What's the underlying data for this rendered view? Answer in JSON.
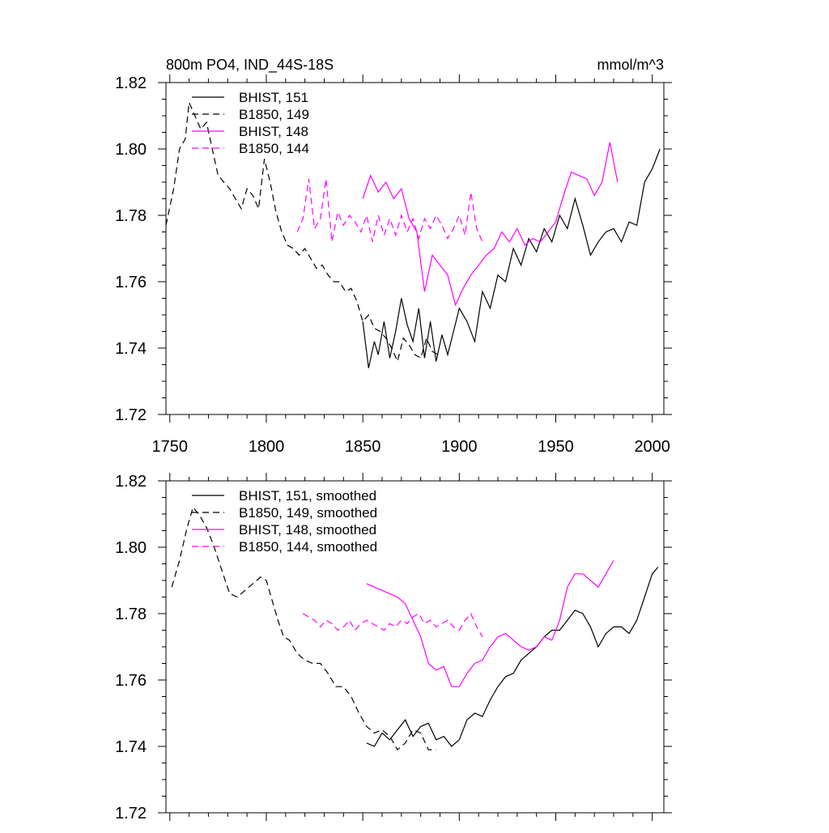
{
  "colors": {
    "black": "#000000",
    "magenta": "#ff00ff"
  },
  "chart_data": [
    {
      "type": "line",
      "title": "800m PO4, IND_44S-18S",
      "units": "mmol/m^3",
      "xlim": [
        1748,
        2006
      ],
      "ylim": [
        1.72,
        1.82
      ],
      "xticks": [
        "1750",
        "1800",
        "1850",
        "1900",
        "1950",
        "2000"
      ],
      "yticks": [
        "1.72",
        "1.74",
        "1.76",
        "1.78",
        "1.80",
        "1.82"
      ],
      "legend_position": "top-left",
      "series": [
        {
          "name": "BHIST, 151",
          "color": "#000000",
          "dash": "solid",
          "x": [
            1850,
            1853,
            1856,
            1858,
            1861,
            1864,
            1867,
            1870,
            1873,
            1876,
            1879,
            1882,
            1885,
            1888,
            1891,
            1894,
            1897,
            1900,
            1904,
            1908,
            1912,
            1916,
            1920,
            1924,
            1928,
            1932,
            1936,
            1940,
            1944,
            1948,
            1952,
            1956,
            1960,
            1964,
            1968,
            1972,
            1976,
            1980,
            1984,
            1988,
            1992,
            1996,
            2000,
            2004
          ],
          "y": [
            1.748,
            1.734,
            1.742,
            1.738,
            1.748,
            1.737,
            1.745,
            1.755,
            1.747,
            1.742,
            1.752,
            1.737,
            1.748,
            1.736,
            1.744,
            1.738,
            1.745,
            1.752,
            1.748,
            1.742,
            1.757,
            1.752,
            1.762,
            1.76,
            1.77,
            1.765,
            1.773,
            1.769,
            1.776,
            1.772,
            1.78,
            1.776,
            1.785,
            1.777,
            1.768,
            1.772,
            1.775,
            1.776,
            1.772,
            1.778,
            1.777,
            1.79,
            1.794,
            1.8
          ]
        },
        {
          "name": "B1850, 149",
          "color": "#000000",
          "dash": "dash",
          "x": [
            1748,
            1752,
            1755,
            1758,
            1760,
            1763,
            1766,
            1769,
            1772,
            1775,
            1778,
            1781,
            1784,
            1787,
            1790,
            1793,
            1796,
            1799,
            1802,
            1805,
            1808,
            1811,
            1814,
            1817,
            1820,
            1823,
            1826,
            1829,
            1832,
            1835,
            1838,
            1841,
            1844,
            1847,
            1850,
            1853,
            1856,
            1859,
            1862,
            1865,
            1868,
            1871,
            1874,
            1877,
            1880,
            1883,
            1886,
            1889
          ],
          "y": [
            1.777,
            1.788,
            1.8,
            1.803,
            1.814,
            1.81,
            1.806,
            1.808,
            1.8,
            1.792,
            1.79,
            1.788,
            1.785,
            1.782,
            1.788,
            1.786,
            1.782,
            1.797,
            1.79,
            1.781,
            1.775,
            1.771,
            1.77,
            1.768,
            1.77,
            1.767,
            1.764,
            1.765,
            1.762,
            1.76,
            1.76,
            1.757,
            1.758,
            1.754,
            1.748,
            1.75,
            1.746,
            1.745,
            1.743,
            1.74,
            1.736,
            1.743,
            1.741,
            1.738,
            1.737,
            1.743,
            1.739,
            1.738
          ]
        },
        {
          "name": "BHIST, 148",
          "color": "#ff00ff",
          "dash": "solid",
          "x": [
            1850,
            1854,
            1858,
            1862,
            1866,
            1870,
            1874,
            1878,
            1882,
            1886,
            1890,
            1894,
            1898,
            1902,
            1906,
            1910,
            1914,
            1918,
            1922,
            1926,
            1930,
            1934,
            1938,
            1942,
            1946,
            1950,
            1954,
            1958,
            1962,
            1966,
            1970,
            1974,
            1978,
            1982
          ],
          "y": [
            1.785,
            1.792,
            1.787,
            1.79,
            1.785,
            1.788,
            1.779,
            1.775,
            1.757,
            1.768,
            1.765,
            1.762,
            1.753,
            1.758,
            1.762,
            1.765,
            1.768,
            1.77,
            1.775,
            1.772,
            1.776,
            1.771,
            1.773,
            1.772,
            1.775,
            1.778,
            1.786,
            1.793,
            1.792,
            1.791,
            1.786,
            1.79,
            1.802,
            1.79
          ]
        },
        {
          "name": "B1850, 144",
          "color": "#ff00ff",
          "dash": "dash",
          "x": [
            1816,
            1819,
            1822,
            1825,
            1828,
            1831,
            1834,
            1837,
            1840,
            1843,
            1846,
            1849,
            1852,
            1855,
            1858,
            1861,
            1864,
            1867,
            1870,
            1873,
            1876,
            1879,
            1882,
            1885,
            1888,
            1891,
            1894,
            1897,
            1900,
            1903,
            1906,
            1909,
            1912
          ],
          "y": [
            1.775,
            1.779,
            1.791,
            1.776,
            1.779,
            1.791,
            1.772,
            1.781,
            1.777,
            1.78,
            1.778,
            1.775,
            1.78,
            1.772,
            1.78,
            1.774,
            1.779,
            1.774,
            1.78,
            1.775,
            1.779,
            1.773,
            1.779,
            1.776,
            1.78,
            1.777,
            1.773,
            1.776,
            1.78,
            1.774,
            1.787,
            1.776,
            1.772
          ]
        }
      ]
    },
    {
      "type": "line",
      "xlim": [
        1748,
        2006
      ],
      "ylim": [
        1.72,
        1.82
      ],
      "yticks": [
        "1.72",
        "1.74",
        "1.76",
        "1.78",
        "1.80",
        "1.82"
      ],
      "legend_position": "top-left",
      "series": [
        {
          "name": "BHIST, 151, smoothed",
          "color": "#000000",
          "dash": "solid",
          "x": [
            1852,
            1856,
            1860,
            1864,
            1868,
            1872,
            1876,
            1880,
            1884,
            1888,
            1892,
            1896,
            1900,
            1904,
            1908,
            1912,
            1916,
            1920,
            1924,
            1928,
            1932,
            1936,
            1940,
            1944,
            1948,
            1952,
            1956,
            1960,
            1964,
            1968,
            1972,
            1976,
            1980,
            1984,
            1988,
            1992,
            1996,
            2000,
            2003
          ],
          "y": [
            1.741,
            1.74,
            1.744,
            1.742,
            1.745,
            1.748,
            1.743,
            1.746,
            1.747,
            1.742,
            1.743,
            1.74,
            1.742,
            1.748,
            1.75,
            1.749,
            1.754,
            1.758,
            1.761,
            1.762,
            1.766,
            1.768,
            1.77,
            1.773,
            1.775,
            1.775,
            1.778,
            1.781,
            1.78,
            1.776,
            1.77,
            1.774,
            1.776,
            1.776,
            1.774,
            1.778,
            1.785,
            1.792,
            1.794
          ]
        },
        {
          "name": "B1850, 149, smoothed",
          "color": "#000000",
          "dash": "dash",
          "x": [
            1751,
            1755,
            1759,
            1762,
            1765,
            1769,
            1773,
            1777,
            1781,
            1785,
            1789,
            1793,
            1797,
            1800,
            1803,
            1806,
            1809,
            1812,
            1816,
            1820,
            1824,
            1828,
            1832,
            1836,
            1840,
            1844,
            1848,
            1852,
            1856,
            1860,
            1864,
            1868,
            1872,
            1876,
            1880,
            1884,
            1888
          ],
          "y": [
            1.788,
            1.796,
            1.806,
            1.812,
            1.81,
            1.806,
            1.8,
            1.793,
            1.786,
            1.785,
            1.787,
            1.789,
            1.791,
            1.79,
            1.784,
            1.778,
            1.773,
            1.772,
            1.768,
            1.766,
            1.765,
            1.765,
            1.762,
            1.758,
            1.758,
            1.755,
            1.75,
            1.746,
            1.744,
            1.745,
            1.743,
            1.739,
            1.741,
            1.745,
            1.744,
            1.739,
            1.739
          ]
        },
        {
          "name": "BHIST, 148, smoothed",
          "color": "#ff00ff",
          "dash": "solid",
          "x": [
            1852,
            1856,
            1860,
            1864,
            1868,
            1872,
            1876,
            1880,
            1884,
            1888,
            1892,
            1896,
            1900,
            1904,
            1908,
            1912,
            1916,
            1920,
            1924,
            1928,
            1932,
            1936,
            1940,
            1944,
            1948,
            1952,
            1956,
            1960,
            1964,
            1968,
            1972,
            1976,
            1980
          ],
          "y": [
            1.789,
            1.788,
            1.787,
            1.786,
            1.785,
            1.783,
            1.778,
            1.773,
            1.765,
            1.763,
            1.764,
            1.758,
            1.758,
            1.762,
            1.765,
            1.766,
            1.77,
            1.773,
            1.774,
            1.772,
            1.77,
            1.769,
            1.77,
            1.773,
            1.772,
            1.778,
            1.788,
            1.792,
            1.792,
            1.79,
            1.788,
            1.792,
            1.796
          ]
        },
        {
          "name": "B1850, 144, smoothed",
          "color": "#ff00ff",
          "dash": "dash",
          "x": [
            1819,
            1822,
            1825,
            1828,
            1831,
            1834,
            1837,
            1840,
            1843,
            1846,
            1849,
            1852,
            1855,
            1858,
            1861,
            1864,
            1867,
            1870,
            1873,
            1876,
            1879,
            1882,
            1885,
            1888,
            1891,
            1894,
            1897,
            1900,
            1903,
            1906,
            1909,
            1912
          ],
          "y": [
            1.78,
            1.779,
            1.778,
            1.776,
            1.778,
            1.777,
            1.775,
            1.776,
            1.778,
            1.775,
            1.777,
            1.778,
            1.777,
            1.776,
            1.775,
            1.777,
            1.776,
            1.778,
            1.777,
            1.779,
            1.78,
            1.777,
            1.778,
            1.776,
            1.777,
            1.778,
            1.776,
            1.775,
            1.778,
            1.78,
            1.776,
            1.773
          ]
        }
      ]
    }
  ]
}
